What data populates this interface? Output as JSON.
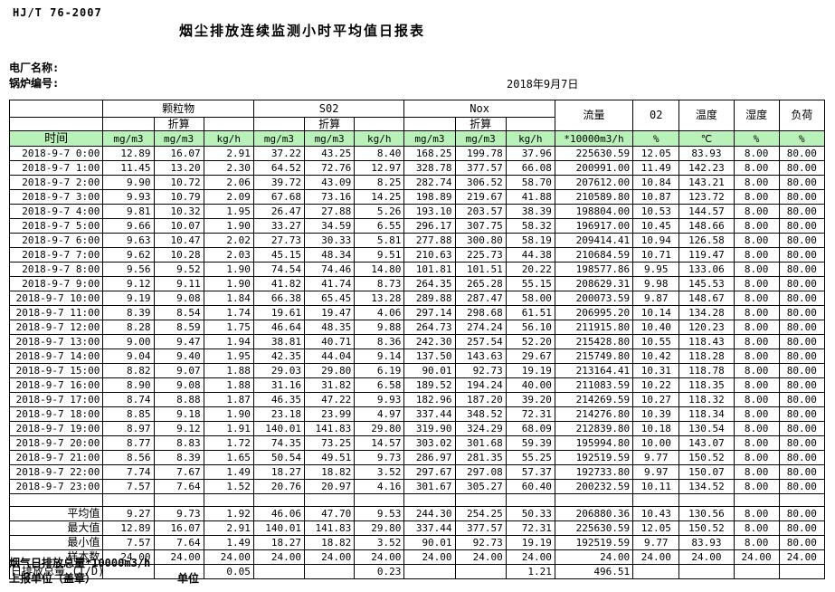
{
  "doc": {
    "standard": "HJ/T 76-2007",
    "title": "烟尘排放连续监测小时平均值日报表",
    "plant_label": "电厂名称:",
    "boiler_label": "锅炉编号:",
    "date": "2018年9月7日"
  },
  "colors": {
    "header_green": "#b9f2b9",
    "border": "#000000",
    "background": "#ffffff"
  },
  "table": {
    "header": {
      "time": "时间",
      "pm": "颗粒物",
      "so2": "S02",
      "nox": "Nox",
      "converted": "折算",
      "flow": "流量",
      "o2": "02",
      "temp": "温度",
      "humidity": "湿度",
      "load": "负荷",
      "units": [
        "mg/m3",
        "mg/m3",
        "kg/h",
        "mg/m3",
        "mg/m3",
        "kg/h",
        "mg/m3",
        "mg/m3",
        "kg/h",
        "*10000m3/h",
        "%",
        "℃",
        "%",
        "%"
      ]
    },
    "rows": [
      {
        "time": "2018-9-7 0:00",
        "values": [
          "12.89",
          "16.07",
          "2.91",
          "37.22",
          "43.25",
          "8.40",
          "168.25",
          "199.78",
          "37.96",
          "225630.59",
          "12.05",
          "83.93",
          "8.00",
          "80.00"
        ]
      },
      {
        "time": "2018-9-7 1:00",
        "values": [
          "11.45",
          "13.20",
          "2.30",
          "64.52",
          "72.76",
          "12.97",
          "328.78",
          "377.57",
          "66.08",
          "200991.00",
          "11.49",
          "142.23",
          "8.00",
          "80.00"
        ]
      },
      {
        "time": "2018-9-7 2:00",
        "values": [
          "9.90",
          "10.72",
          "2.06",
          "39.72",
          "43.09",
          "8.25",
          "282.74",
          "306.52",
          "58.70",
          "207612.00",
          "10.84",
          "143.21",
          "8.00",
          "80.00"
        ]
      },
      {
        "time": "2018-9-7 3:00",
        "values": [
          "9.93",
          "10.79",
          "2.09",
          "67.68",
          "73.16",
          "14.25",
          "198.89",
          "219.67",
          "41.88",
          "210589.80",
          "10.87",
          "123.72",
          "8.00",
          "80.00"
        ]
      },
      {
        "time": "2018-9-7 4:00",
        "values": [
          "9.81",
          "10.32",
          "1.95",
          "26.47",
          "27.88",
          "5.26",
          "193.10",
          "203.57",
          "38.39",
          "198804.00",
          "10.53",
          "144.57",
          "8.00",
          "80.00"
        ]
      },
      {
        "time": "2018-9-7 5:00",
        "values": [
          "9.66",
          "10.07",
          "1.90",
          "33.27",
          "34.59",
          "6.55",
          "296.17",
          "307.75",
          "58.32",
          "196917.00",
          "10.45",
          "148.66",
          "8.00",
          "80.00"
        ]
      },
      {
        "time": "2018-9-7 6:00",
        "values": [
          "9.63",
          "10.47",
          "2.02",
          "27.73",
          "30.33",
          "5.81",
          "277.88",
          "300.80",
          "58.19",
          "209414.41",
          "10.94",
          "126.58",
          "8.00",
          "80.00"
        ]
      },
      {
        "time": "2018-9-7 7:00",
        "values": [
          "9.62",
          "10.28",
          "2.03",
          "45.15",
          "48.34",
          "9.51",
          "210.63",
          "225.73",
          "44.38",
          "210684.59",
          "10.71",
          "119.47",
          "8.00",
          "80.00"
        ]
      },
      {
        "time": "2018-9-7 8:00",
        "values": [
          "9.56",
          "9.52",
          "1.90",
          "74.54",
          "74.46",
          "14.80",
          "101.81",
          "101.51",
          "20.22",
          "198577.86",
          "9.95",
          "133.06",
          "8.00",
          "80.00"
        ]
      },
      {
        "time": "2018-9-7 9:00",
        "values": [
          "9.12",
          "9.11",
          "1.90",
          "41.82",
          "41.74",
          "8.73",
          "264.35",
          "265.28",
          "55.15",
          "208629.31",
          "9.98",
          "145.53",
          "8.00",
          "80.00"
        ]
      },
      {
        "time": "2018-9-7 10:00",
        "values": [
          "9.19",
          "9.08",
          "1.84",
          "66.38",
          "65.45",
          "13.28",
          "289.88",
          "287.47",
          "58.00",
          "200073.59",
          "9.87",
          "148.67",
          "8.00",
          "80.00"
        ]
      },
      {
        "time": "2018-9-7 11:00",
        "values": [
          "8.39",
          "8.54",
          "1.74",
          "19.61",
          "19.47",
          "4.06",
          "297.14",
          "298.68",
          "61.51",
          "206995.20",
          "10.14",
          "134.28",
          "8.00",
          "80.00"
        ]
      },
      {
        "time": "2018-9-7 12:00",
        "values": [
          "8.28",
          "8.59",
          "1.75",
          "46.64",
          "48.35",
          "9.88",
          "264.73",
          "274.24",
          "56.10",
          "211915.80",
          "10.40",
          "120.23",
          "8.00",
          "80.00"
        ]
      },
      {
        "time": "2018-9-7 13:00",
        "values": [
          "9.00",
          "9.47",
          "1.94",
          "38.81",
          "40.71",
          "8.36",
          "242.30",
          "257.54",
          "52.20",
          "215428.80",
          "10.55",
          "118.43",
          "8.00",
          "80.00"
        ]
      },
      {
        "time": "2018-9-7 14:00",
        "values": [
          "9.04",
          "9.40",
          "1.95",
          "42.35",
          "44.04",
          "9.14",
          "137.50",
          "143.63",
          "29.67",
          "215749.80",
          "10.42",
          "118.28",
          "8.00",
          "80.00"
        ]
      },
      {
        "time": "2018-9-7 15:00",
        "values": [
          "8.82",
          "9.07",
          "1.88",
          "29.03",
          "29.80",
          "6.19",
          "90.01",
          "92.73",
          "19.19",
          "213164.41",
          "10.31",
          "118.78",
          "8.00",
          "80.00"
        ]
      },
      {
        "time": "2018-9-7 16:00",
        "values": [
          "8.90",
          "9.08",
          "1.88",
          "31.16",
          "31.82",
          "6.58",
          "189.52",
          "194.24",
          "40.00",
          "211083.59",
          "10.22",
          "118.35",
          "8.00",
          "80.00"
        ]
      },
      {
        "time": "2018-9-7 17:00",
        "values": [
          "8.74",
          "8.88",
          "1.87",
          "46.35",
          "47.22",
          "9.93",
          "182.96",
          "187.20",
          "39.20",
          "214269.59",
          "10.27",
          "118.32",
          "8.00",
          "80.00"
        ]
      },
      {
        "time": "2018-9-7 18:00",
        "values": [
          "8.85",
          "9.18",
          "1.90",
          "23.18",
          "23.99",
          "4.97",
          "337.44",
          "348.52",
          "72.31",
          "214276.80",
          "10.39",
          "118.34",
          "8.00",
          "80.00"
        ]
      },
      {
        "time": "2018-9-7 19:00",
        "values": [
          "8.97",
          "9.12",
          "1.91",
          "140.01",
          "141.83",
          "29.80",
          "319.90",
          "324.29",
          "68.09",
          "212839.80",
          "10.18",
          "130.54",
          "8.00",
          "80.00"
        ]
      },
      {
        "time": "2018-9-7 20:00",
        "values": [
          "8.77",
          "8.83",
          "1.72",
          "74.35",
          "73.25",
          "14.57",
          "303.02",
          "301.68",
          "59.39",
          "195994.80",
          "10.00",
          "143.07",
          "8.00",
          "80.00"
        ]
      },
      {
        "time": "2018-9-7 21:00",
        "values": [
          "8.56",
          "8.39",
          "1.65",
          "50.54",
          "49.51",
          "9.73",
          "286.97",
          "281.35",
          "55.25",
          "192519.59",
          "9.77",
          "150.52",
          "8.00",
          "80.00"
        ]
      },
      {
        "time": "2018-9-7 22:00",
        "values": [
          "7.74",
          "7.67",
          "1.49",
          "18.27",
          "18.82",
          "3.52",
          "297.67",
          "297.08",
          "57.37",
          "192733.80",
          "9.97",
          "150.07",
          "8.00",
          "80.00"
        ]
      },
      {
        "time": "2018-9-7 23:00",
        "values": [
          "7.57",
          "7.64",
          "1.52",
          "20.76",
          "20.97",
          "4.16",
          "301.67",
          "305.27",
          "60.40",
          "200232.59",
          "10.11",
          "134.52",
          "8.00",
          "80.00"
        ]
      }
    ],
    "summary": [
      {
        "label": "平均值",
        "values": [
          "9.27",
          "9.73",
          "1.92",
          "46.06",
          "47.70",
          "9.53",
          "244.30",
          "254.25",
          "50.33",
          "206880.36",
          "10.43",
          "130.56",
          "8.00",
          "80.00"
        ]
      },
      {
        "label": "最大值",
        "values": [
          "12.89",
          "16.07",
          "2.91",
          "140.01",
          "141.83",
          "29.80",
          "337.44",
          "377.57",
          "72.31",
          "225630.59",
          "12.05",
          "150.52",
          "8.00",
          "80.00"
        ]
      },
      {
        "label": "最小值",
        "values": [
          "7.57",
          "7.64",
          "1.49",
          "18.27",
          "18.82",
          "3.52",
          "90.01",
          "92.73",
          "19.19",
          "192519.59",
          "9.77",
          "83.93",
          "8.00",
          "80.00"
        ]
      },
      {
        "label": "样本数",
        "values": [
          "24.00",
          "24.00",
          "24.00",
          "24.00",
          "24.00",
          "24.00",
          "24.00",
          "24.00",
          "24.00",
          "24.00",
          "24.00",
          "24.00",
          "24.00",
          "24.00"
        ]
      },
      {
        "label": "日排放总量 (T/D)",
        "values": [
          "",
          "",
          "0.05",
          "",
          "",
          "0.23",
          "",
          "",
          "1.21",
          "496.51",
          "",
          "",
          "",
          ""
        ]
      }
    ]
  },
  "footer": {
    "note": "烟气日排放总量*10000m3/h",
    "report_unit_label": "上报单位（盖章）",
    "unit_label": "单位"
  }
}
